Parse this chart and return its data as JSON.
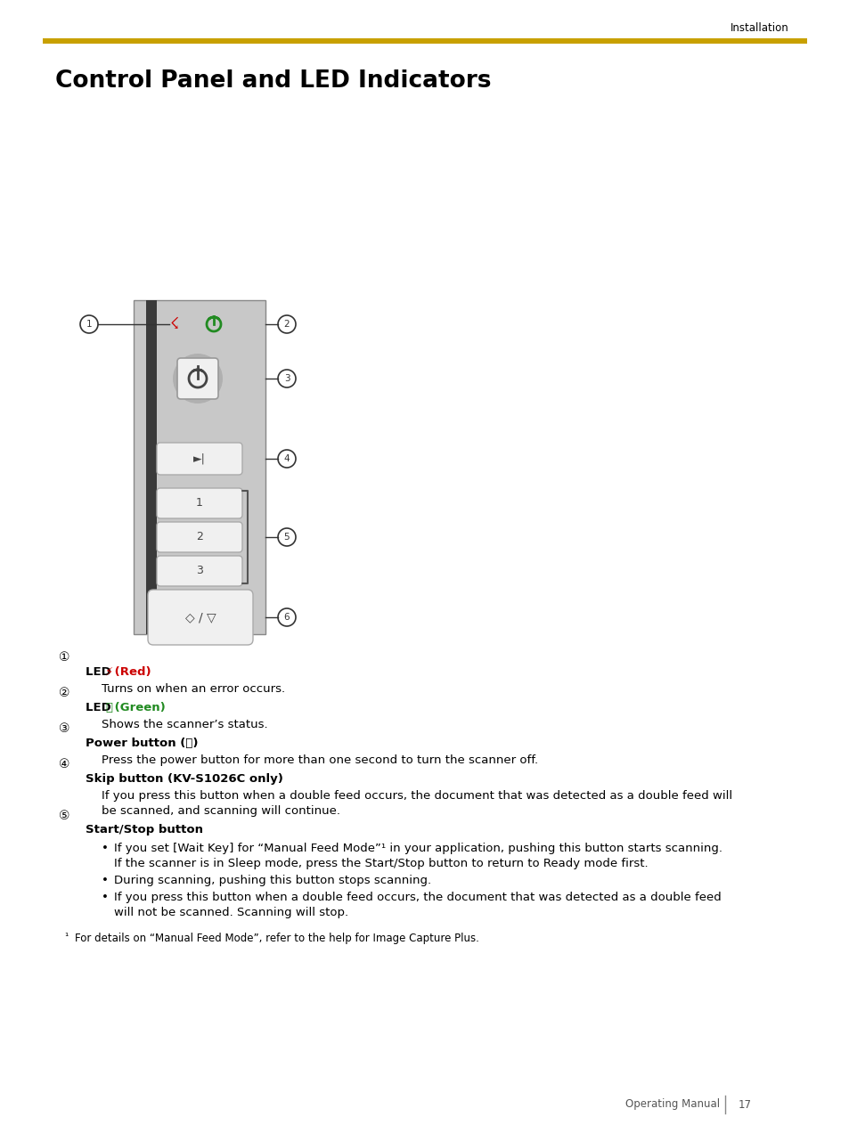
{
  "page_title": "Control Panel and LED Indicators",
  "header_label": "Installation",
  "footer_text": "Operating Manual",
  "footer_page": "17",
  "gold_line_color": "#C8A000",
  "background_color": "#FFFFFF",
  "panel_bg": "#C8C8C8",
  "panel_dark_strip": "#3A3A3A",
  "panel_border": "#888888",
  "button_bg": "#F0F0F0",
  "button_border": "#AAAAAA",
  "power_halo": "#AAAAAA",
  "callout_circle_color": "#333333",
  "red_led_color": "#CC0000",
  "green_led_color": "#228B22",
  "text_items": [
    {
      "num": "①",
      "bold_pre": "LED ",
      "icon": "⚡",
      "icon_color": "#CC0000",
      "colored_text": " (Red)",
      "colored_text_color": "#CC0000",
      "desc": "Turns on when an error occurs."
    },
    {
      "num": "②",
      "bold_pre": "LED ",
      "icon": "⏻",
      "icon_color": "#228B22",
      "colored_text": " (Green)",
      "colored_text_color": "#228B22",
      "desc": "Shows the scanner’s status."
    },
    {
      "num": "③",
      "bold_pre": "Power button (⏻)",
      "desc": "Press the power button for more than one second to turn the scanner off."
    },
    {
      "num": "④",
      "bold_pre": "Skip button (KV-S1026C only)",
      "desc_lines": [
        "If you press this button when a double feed occurs, the document that was detected as a double feed will",
        "be scanned, and scanning will continue."
      ]
    },
    {
      "num": "⑤",
      "bold_pre": "Start/Stop button",
      "bullets": [
        [
          "If you set [Wait Key] for “Manual Feed Mode”¹ in your application, pushing this button starts scanning.",
          "If the scanner is in Sleep mode, press the Start/Stop button to return to Ready mode first."
        ],
        [
          "During scanning, pushing this button stops scanning."
        ],
        [
          "If you press this button when a double feed occurs, the document that was detected as a double feed",
          "will not be scanned. Scanning will stop."
        ]
      ]
    }
  ],
  "footnote_sup": "¹",
  "footnote_text": "   For details on “Manual Feed Mode”, refer to the help for Image Capture Plus."
}
